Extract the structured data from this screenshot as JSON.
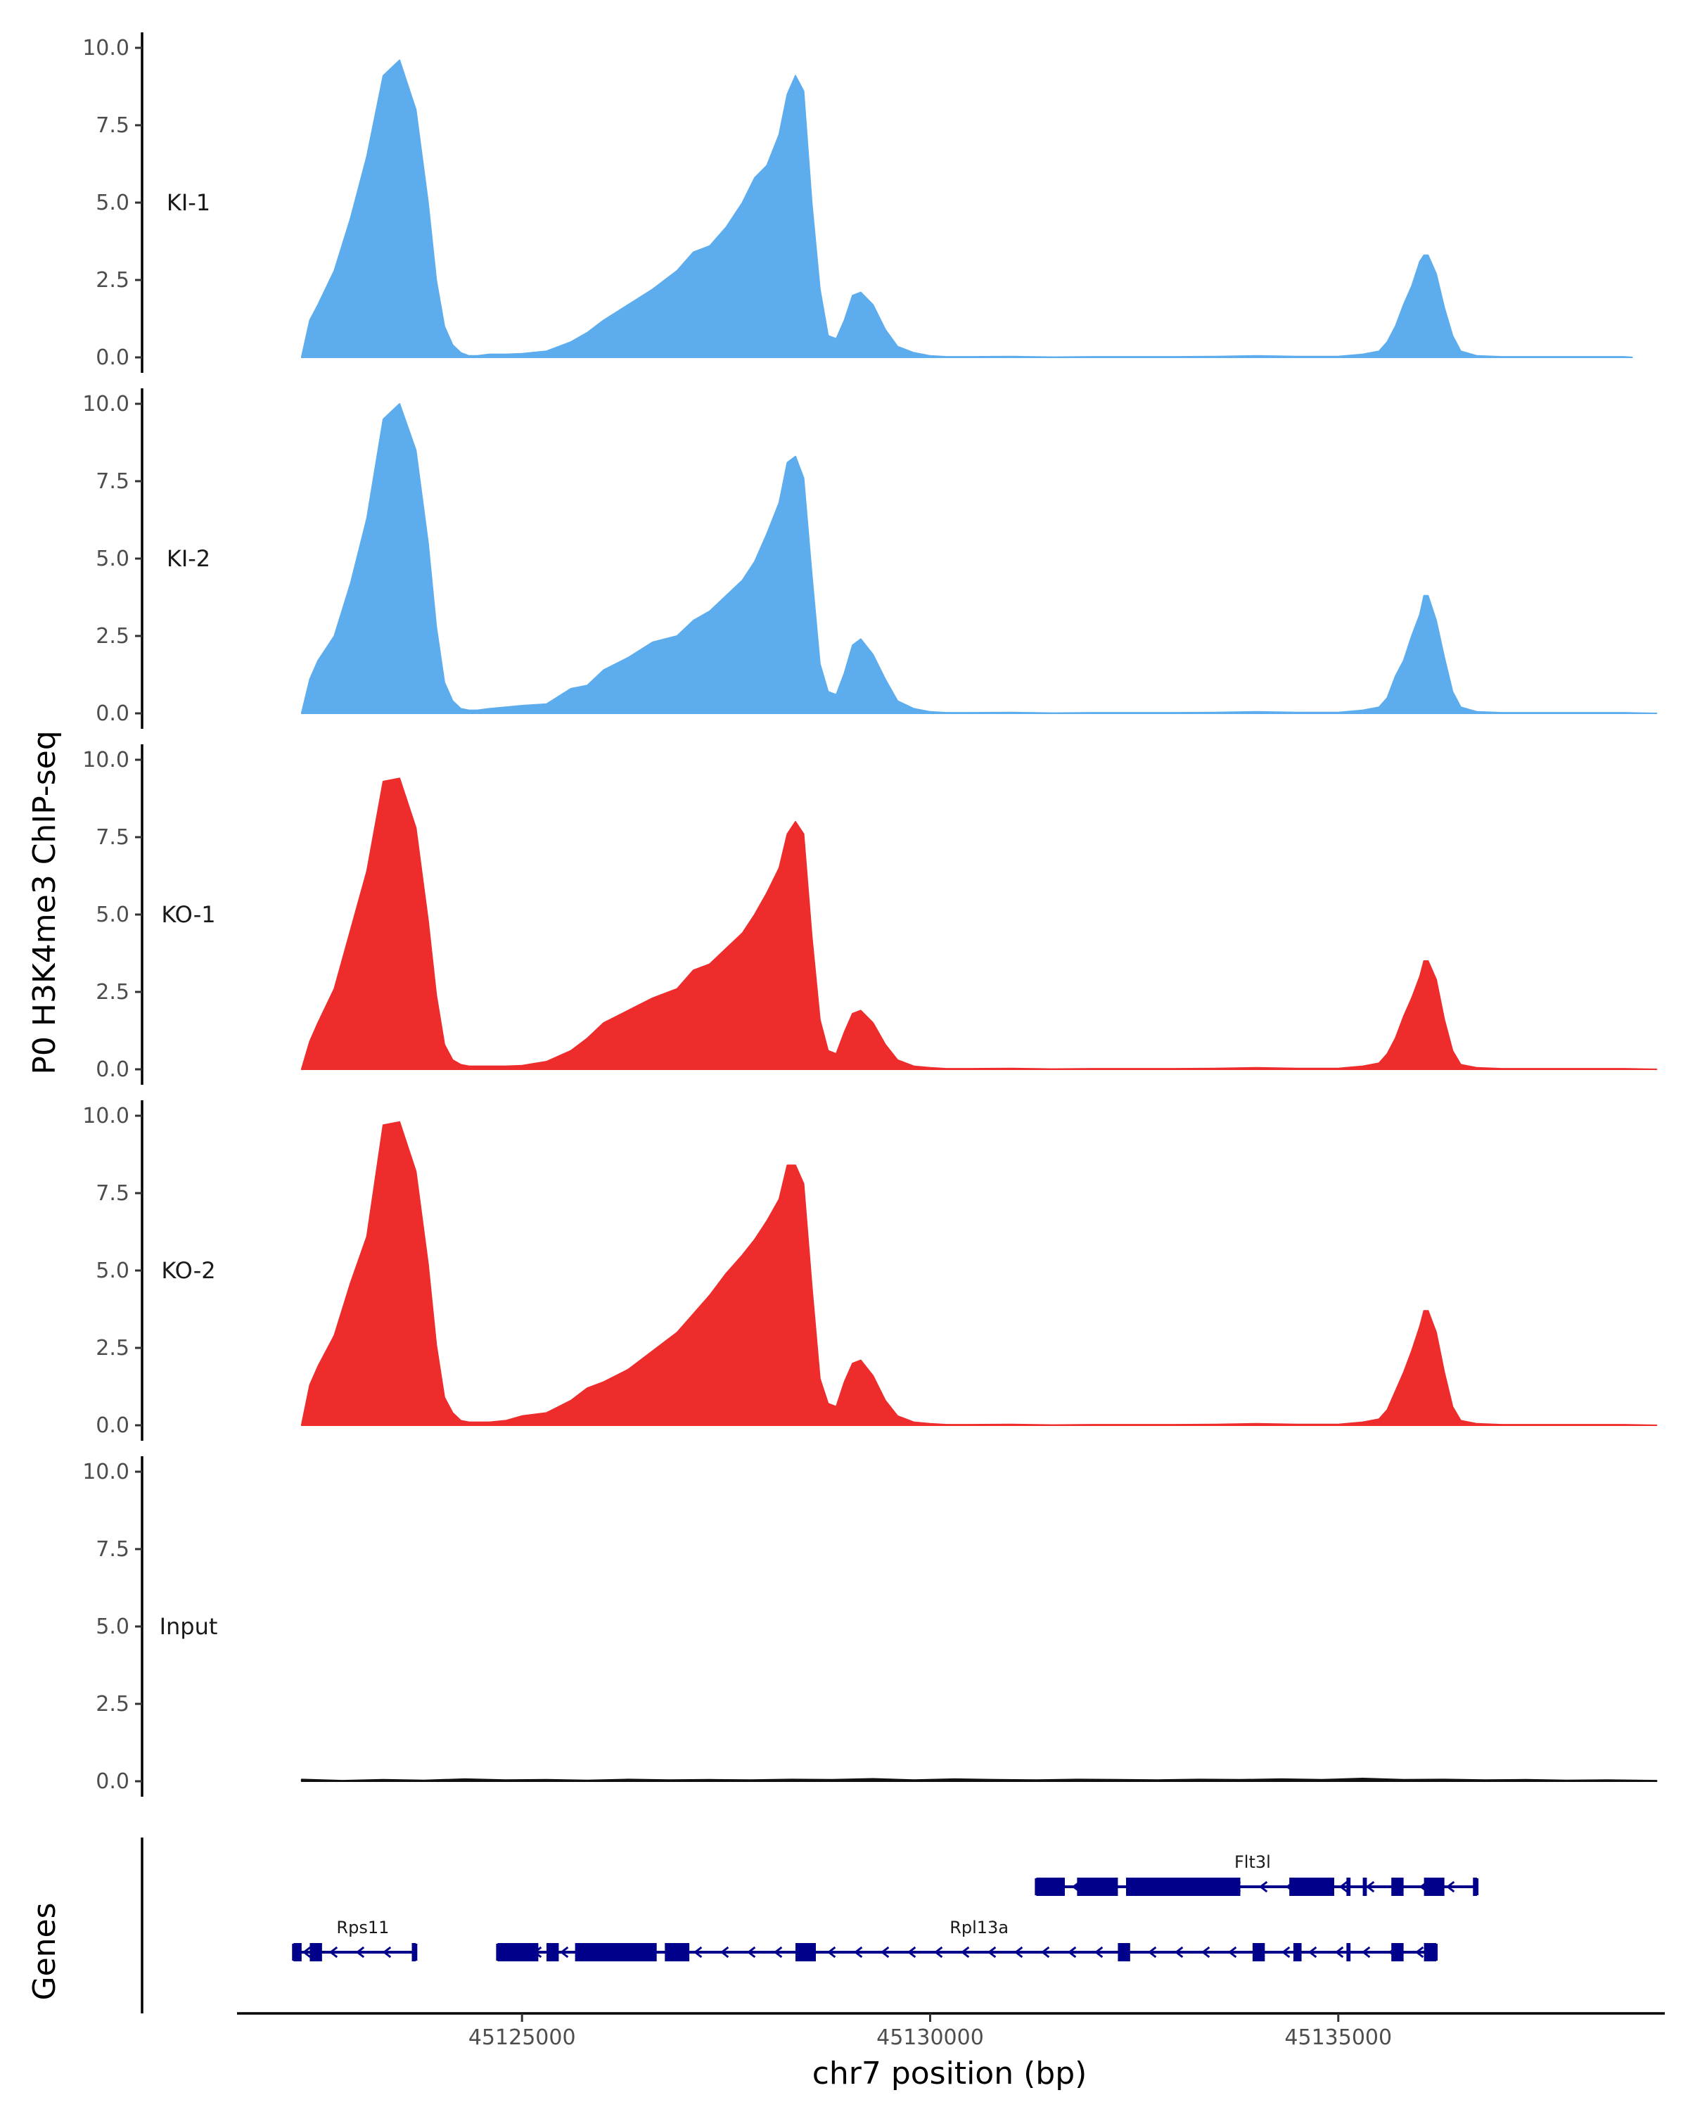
{
  "chart_data": {
    "type": "area",
    "y_axis_title": "P0 H3K4me3 ChIP-seq",
    "genes_axis_title": "Genes",
    "x_axis_title": "chr7 position (bp)",
    "ylim": [
      0,
      10
    ],
    "yticks": [
      "0.0",
      "2.5",
      "5.0",
      "7.5",
      "10.0"
    ],
    "xlim": [
      45121500,
      45139000
    ],
    "xticks": [
      {
        "value": 45125000,
        "label": "45125000"
      },
      {
        "value": 45130000,
        "label": "45130000"
      },
      {
        "value": 45135000,
        "label": "45135000"
      }
    ],
    "grid": false,
    "legend": "none",
    "tracks": [
      {
        "label": "KI-1",
        "color": "#5DADEE",
        "x": [
          45122300,
          45122400,
          45122500,
          45122700,
          45122900,
          45123100,
          45123300,
          45123500,
          45123700,
          45123850,
          45123950,
          45124050,
          45124150,
          45124250,
          45124350,
          45124450,
          45124600,
          45124800,
          45125000,
          45125300,
          45125600,
          45125800,
          45126000,
          45126300,
          45126600,
          45126900,
          45127100,
          45127300,
          45127500,
          45127700,
          45127850,
          45128000,
          45128150,
          45128250,
          45128350,
          45128450,
          45128550,
          45128650,
          45128750,
          45128850,
          45128950,
          45129050,
          45129150,
          45129300,
          45129450,
          45129600,
          45129800,
          45130000,
          45130200,
          45130500,
          45131000,
          45131500,
          45132000,
          45132500,
          45133000,
          45133500,
          45134000,
          45134500,
          45135000,
          45135300,
          45135500,
          45135600,
          45135700,
          45135800,
          45135900,
          45136000,
          45136050,
          45136100,
          45136200,
          45136300,
          45136400,
          45136500,
          45136700,
          45137000,
          45137500,
          45138000,
          45138500,
          45138600
        ],
        "y": [
          0,
          1.2,
          1.7,
          2.8,
          4.5,
          6.5,
          9.1,
          9.6,
          8.0,
          5.0,
          2.5,
          1.0,
          0.4,
          0.15,
          0.05,
          0.05,
          0.1,
          0.1,
          0.12,
          0.2,
          0.5,
          0.8,
          1.2,
          1.7,
          2.2,
          2.8,
          3.4,
          3.6,
          4.2,
          5.0,
          5.8,
          6.2,
          7.2,
          8.5,
          9.1,
          8.6,
          5.0,
          2.2,
          0.7,
          0.6,
          1.2,
          2.0,
          2.1,
          1.7,
          0.9,
          0.35,
          0.15,
          0.05,
          0.02,
          0.02,
          0.03,
          0.01,
          0.02,
          0.02,
          0.02,
          0.03,
          0.05,
          0.03,
          0.03,
          0.1,
          0.2,
          0.5,
          1.0,
          1.7,
          2.3,
          3.1,
          3.3,
          3.3,
          2.7,
          1.6,
          0.7,
          0.2,
          0.05,
          0.02,
          0.02,
          0.02,
          0.02,
          0
        ]
      },
      {
        "label": "KI-2",
        "color": "#5DADEE",
        "x": [
          45122300,
          45122400,
          45122500,
          45122700,
          45122900,
          45123100,
          45123300,
          45123500,
          45123700,
          45123850,
          45123950,
          45124050,
          45124150,
          45124250,
          45124350,
          45124450,
          45124600,
          45124800,
          45125000,
          45125300,
          45125600,
          45125800,
          45126000,
          45126300,
          45126600,
          45126900,
          45127100,
          45127300,
          45127500,
          45127700,
          45127850,
          45128000,
          45128150,
          45128250,
          45128350,
          45128450,
          45128550,
          45128650,
          45128750,
          45128850,
          45128950,
          45129050,
          45129150,
          45129300,
          45129450,
          45129600,
          45129800,
          45130000,
          45130200,
          45130500,
          45131000,
          45131500,
          45132000,
          45132500,
          45133000,
          45133500,
          45134000,
          45134500,
          45135000,
          45135300,
          45135500,
          45135600,
          45135700,
          45135800,
          45135900,
          45136000,
          45136050,
          45136100,
          45136200,
          45136300,
          45136400,
          45136500,
          45136700,
          45137000,
          45137500,
          45138000,
          45138500,
          45138900
        ],
        "y": [
          0,
          1.1,
          1.7,
          2.5,
          4.2,
          6.3,
          9.5,
          10.0,
          8.5,
          5.5,
          2.8,
          1.0,
          0.4,
          0.15,
          0.1,
          0.1,
          0.15,
          0.2,
          0.25,
          0.3,
          0.8,
          0.9,
          1.4,
          1.8,
          2.3,
          2.5,
          3.0,
          3.3,
          3.8,
          4.3,
          4.9,
          5.8,
          6.8,
          8.1,
          8.3,
          7.6,
          4.5,
          1.6,
          0.7,
          0.6,
          1.3,
          2.2,
          2.4,
          1.9,
          1.1,
          0.4,
          0.15,
          0.05,
          0.02,
          0.02,
          0.03,
          0.01,
          0.02,
          0.02,
          0.02,
          0.03,
          0.05,
          0.03,
          0.03,
          0.1,
          0.2,
          0.5,
          1.2,
          1.7,
          2.5,
          3.2,
          3.8,
          3.8,
          3.0,
          1.8,
          0.7,
          0.2,
          0.05,
          0.02,
          0.02,
          0.02,
          0.02,
          0
        ]
      },
      {
        "label": "KO-1",
        "color": "#EE2C2C",
        "x": [
          45122300,
          45122400,
          45122500,
          45122700,
          45122900,
          45123100,
          45123300,
          45123500,
          45123700,
          45123850,
          45123950,
          45124050,
          45124150,
          45124250,
          45124350,
          45124450,
          45124600,
          45124800,
          45125000,
          45125300,
          45125600,
          45125800,
          45126000,
          45126300,
          45126600,
          45126900,
          45127100,
          45127300,
          45127500,
          45127700,
          45127850,
          45128000,
          45128150,
          45128250,
          45128350,
          45128450,
          45128550,
          45128650,
          45128750,
          45128850,
          45128950,
          45129050,
          45129150,
          45129300,
          45129450,
          45129600,
          45129800,
          45130000,
          45130200,
          45130500,
          45131000,
          45131500,
          45132000,
          45132500,
          45133000,
          45133500,
          45134000,
          45134500,
          45135000,
          45135300,
          45135500,
          45135600,
          45135700,
          45135800,
          45135900,
          45136000,
          45136050,
          45136100,
          45136200,
          45136300,
          45136400,
          45136500,
          45136700,
          45137000,
          45137500,
          45138000,
          45138500,
          45138900
        ],
        "y": [
          0,
          0.9,
          1.5,
          2.6,
          4.5,
          6.4,
          9.3,
          9.4,
          7.8,
          4.8,
          2.4,
          0.8,
          0.3,
          0.15,
          0.1,
          0.1,
          0.1,
          0.1,
          0.12,
          0.25,
          0.6,
          1.0,
          1.5,
          1.9,
          2.3,
          2.6,
          3.2,
          3.4,
          3.9,
          4.4,
          5.0,
          5.7,
          6.5,
          7.6,
          8.0,
          7.6,
          4.3,
          1.6,
          0.6,
          0.5,
          1.2,
          1.8,
          1.9,
          1.5,
          0.8,
          0.3,
          0.1,
          0.05,
          0.02,
          0.02,
          0.03,
          0.01,
          0.02,
          0.02,
          0.02,
          0.03,
          0.05,
          0.03,
          0.03,
          0.1,
          0.2,
          0.5,
          1.0,
          1.7,
          2.3,
          3.0,
          3.5,
          3.5,
          2.9,
          1.6,
          0.6,
          0.15,
          0.05,
          0.02,
          0.02,
          0.02,
          0.02,
          0
        ]
      },
      {
        "label": "KO-2",
        "color": "#EE2C2C",
        "x": [
          45122300,
          45122400,
          45122500,
          45122700,
          45122900,
          45123100,
          45123300,
          45123500,
          45123700,
          45123850,
          45123950,
          45124050,
          45124150,
          45124250,
          45124350,
          45124450,
          45124600,
          45124800,
          45125000,
          45125300,
          45125600,
          45125800,
          45126000,
          45126300,
          45126600,
          45126900,
          45127100,
          45127300,
          45127500,
          45127700,
          45127850,
          45128000,
          45128150,
          45128250,
          45128350,
          45128450,
          45128550,
          45128650,
          45128750,
          45128850,
          45128950,
          45129050,
          45129150,
          45129300,
          45129450,
          45129600,
          45129800,
          45130000,
          45130200,
          45130500,
          45131000,
          45131500,
          45132000,
          45132500,
          45133000,
          45133500,
          45134000,
          45134500,
          45135000,
          45135300,
          45135500,
          45135600,
          45135700,
          45135800,
          45135900,
          45136000,
          45136050,
          45136100,
          45136200,
          45136300,
          45136400,
          45136500,
          45136700,
          45137000,
          45137500,
          45138000,
          45138500,
          45138900
        ],
        "y": [
          0,
          1.3,
          1.9,
          2.9,
          4.6,
          6.1,
          9.7,
          9.8,
          8.2,
          5.2,
          2.6,
          0.9,
          0.4,
          0.15,
          0.1,
          0.1,
          0.1,
          0.15,
          0.3,
          0.4,
          0.8,
          1.2,
          1.4,
          1.8,
          2.4,
          3.0,
          3.6,
          4.2,
          4.9,
          5.5,
          6.0,
          6.6,
          7.3,
          8.4,
          8.4,
          7.8,
          4.5,
          1.5,
          0.7,
          0.6,
          1.4,
          2.0,
          2.1,
          1.6,
          0.8,
          0.3,
          0.1,
          0.05,
          0.02,
          0.02,
          0.03,
          0.01,
          0.02,
          0.02,
          0.02,
          0.03,
          0.05,
          0.03,
          0.03,
          0.1,
          0.2,
          0.5,
          1.1,
          1.7,
          2.4,
          3.2,
          3.7,
          3.7,
          3.0,
          1.7,
          0.6,
          0.15,
          0.05,
          0.02,
          0.02,
          0.02,
          0.02,
          0
        ]
      },
      {
        "label": "Input",
        "color": "#111111",
        "x": [
          45122300,
          45122800,
          45123300,
          45123800,
          45124300,
          45124800,
          45125300,
          45125800,
          45126300,
          45126800,
          45127300,
          45127800,
          45128300,
          45128800,
          45129300,
          45129800,
          45130300,
          45130800,
          45131300,
          45131800,
          45132300,
          45132800,
          45133300,
          45133800,
          45134300,
          45134800,
          45135300,
          45135800,
          45136300,
          45136800,
          45137300,
          45137800,
          45138300,
          45138900
        ],
        "y": [
          0.06,
          0.02,
          0.05,
          0.03,
          0.07,
          0.04,
          0.05,
          0.03,
          0.06,
          0.04,
          0.05,
          0.04,
          0.06,
          0.05,
          0.08,
          0.04,
          0.07,
          0.05,
          0.04,
          0.06,
          0.05,
          0.04,
          0.06,
          0.05,
          0.07,
          0.05,
          0.09,
          0.05,
          0.06,
          0.04,
          0.05,
          0.03,
          0.04,
          0.02
        ]
      }
    ],
    "genes": [
      {
        "name": "Flt3l",
        "row": 1,
        "color": "#00008B",
        "strand": "-",
        "start": 45131300,
        "end": 45136700,
        "label_pos": 45133950,
        "exons": [
          [
            45131300,
            45131650
          ],
          [
            45131800,
            45132300
          ],
          [
            45132400,
            45133800
          ],
          [
            45134400,
            45134950
          ],
          [
            45135100,
            45135150
          ],
          [
            45135300,
            45135350
          ],
          [
            45135650,
            45135800
          ],
          [
            45136050,
            45136300
          ],
          [
            45136650,
            45136700
          ]
        ]
      },
      {
        "name": "Rps11",
        "row": 2,
        "color": "#00008B",
        "strand": "-",
        "start": 45122200,
        "end": 45123700,
        "label_pos": 45123050,
        "exons": [
          [
            45122200,
            45122300
          ],
          [
            45122400,
            45122550
          ],
          [
            45123650,
            45123700
          ]
        ]
      },
      {
        "name": "Rpl13a",
        "row": 2,
        "color": "#00008B",
        "strand": "-",
        "start": 45124700,
        "end": 45136200,
        "label_pos": 45130600,
        "exons": [
          [
            45124700,
            45125200
          ],
          [
            45125300,
            45125450
          ],
          [
            45125650,
            45126650
          ],
          [
            45126750,
            45127050
          ],
          [
            45128350,
            45128600
          ],
          [
            45132300,
            45132450
          ],
          [
            45133950,
            45134100
          ],
          [
            45134450,
            45134550
          ],
          [
            45135100,
            45135150
          ],
          [
            45135650,
            45135800
          ],
          [
            45136050,
            45136200
          ]
        ]
      }
    ]
  }
}
